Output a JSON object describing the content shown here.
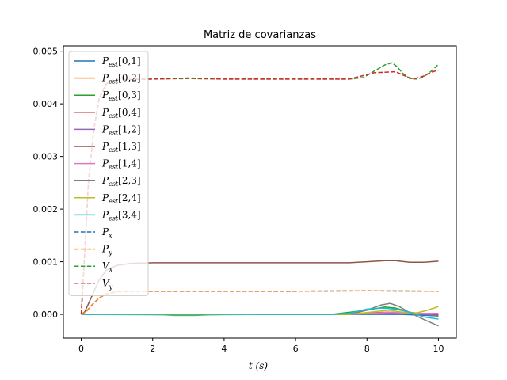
{
  "chart_data": {
    "type": "line",
    "title": "Matriz de covarianzas",
    "xlabel": "t (s)",
    "ylabel": "",
    "xlim": [
      -0.5,
      10.5
    ],
    "ylim": [
      -0.00045,
      0.0051
    ],
    "xticks": [
      0,
      2,
      4,
      6,
      8,
      10
    ],
    "xtick_labels": [
      "0",
      "2",
      "4",
      "6",
      "8",
      "10"
    ],
    "yticks": [
      0,
      0.001,
      0.002,
      0.003,
      0.004,
      0.005
    ],
    "ytick_labels": [
      "0.000",
      "0.001",
      "0.002",
      "0.003",
      "0.004",
      "0.005"
    ],
    "grid": false,
    "legend_position": "upper-left",
    "series": [
      {
        "name": "P_est[0,1]",
        "label_main": "P",
        "label_sub": "est",
        "label_suffix": "[0,1]",
        "color": "#1f77b4",
        "dash": "solid",
        "points": [
          [
            0,
            0
          ],
          [
            1,
            0
          ],
          [
            3,
            0
          ],
          [
            5,
            0
          ],
          [
            7,
            0
          ],
          [
            8,
            0
          ],
          [
            9,
            0
          ],
          [
            10,
            -3e-05
          ]
        ]
      },
      {
        "name": "P_est[0,2]",
        "label_main": "P",
        "label_sub": "est",
        "label_suffix": "[0,2]",
        "color": "#ff7f0e",
        "dash": "solid",
        "points": [
          [
            0,
            0
          ],
          [
            2,
            0
          ],
          [
            5,
            0
          ],
          [
            7.5,
            0
          ],
          [
            8,
            3e-05
          ],
          [
            8.6,
            4e-05
          ],
          [
            9,
            2e-05
          ],
          [
            10,
            1e-05
          ]
        ]
      },
      {
        "name": "P_est[0,3]",
        "label_main": "P",
        "label_sub": "est",
        "label_suffix": "[0,3]",
        "color": "#2ca02c",
        "dash": "solid",
        "points": [
          [
            0,
            0
          ],
          [
            2,
            0
          ],
          [
            2.6,
            -2e-05
          ],
          [
            3.2,
            -2e-05
          ],
          [
            4,
            0
          ],
          [
            7,
            0
          ],
          [
            8,
            8e-05
          ],
          [
            8.5,
            0.00014
          ],
          [
            8.8,
            0.00012
          ],
          [
            9.2,
            4e-05
          ],
          [
            10,
            -3e-05
          ]
        ]
      },
      {
        "name": "P_est[0,4]",
        "label_main": "P",
        "label_sub": "est",
        "label_suffix": "[0,4]",
        "color": "#d62728",
        "dash": "solid",
        "points": [
          [
            0,
            0
          ],
          [
            7.5,
            0
          ],
          [
            8.2,
            3e-05
          ],
          [
            8.6,
            4e-05
          ],
          [
            9,
            2e-05
          ],
          [
            10,
            -1e-05
          ]
        ]
      },
      {
        "name": "P_est[1,2]",
        "label_main": "P",
        "label_sub": "est",
        "label_suffix": "[1,2]",
        "color": "#9467bd",
        "dash": "solid",
        "points": [
          [
            0,
            0
          ],
          [
            7.5,
            0
          ],
          [
            8.3,
            2e-05
          ],
          [
            8.8,
            3e-05
          ],
          [
            9.3,
            1e-05
          ],
          [
            10,
            -2e-05
          ]
        ]
      },
      {
        "name": "P_est[1,3]",
        "label_main": "P",
        "label_sub": "est",
        "label_suffix": "[1,3]",
        "color": "#8c564b",
        "dash": "solid",
        "points": [
          [
            0,
            0
          ],
          [
            0.1,
            5e-05
          ],
          [
            0.3,
            0.00035
          ],
          [
            0.5,
            0.00065
          ],
          [
            0.7,
            0.00084
          ],
          [
            1,
            0.00093
          ],
          [
            1.4,
            0.00097
          ],
          [
            2,
            0.00098
          ],
          [
            4,
            0.00098
          ],
          [
            6,
            0.00098
          ],
          [
            7.5,
            0.00098
          ],
          [
            8,
            0.001
          ],
          [
            8.5,
            0.00102
          ],
          [
            8.8,
            0.00102
          ],
          [
            9.2,
            0.00099
          ],
          [
            9.6,
            0.00099
          ],
          [
            10,
            0.00101
          ]
        ]
      },
      {
        "name": "P_est[1,4]",
        "label_main": "P",
        "label_sub": "est",
        "label_suffix": "[1,4]",
        "color": "#e377c2",
        "dash": "solid",
        "points": [
          [
            0,
            0
          ],
          [
            7.5,
            0
          ],
          [
            8.3,
            3e-05
          ],
          [
            8.7,
            4e-05
          ],
          [
            9.2,
            2e-05
          ],
          [
            10,
            2e-05
          ]
        ]
      },
      {
        "name": "P_est[2,3]",
        "label_main": "P",
        "label_sub": "est",
        "label_suffix": "[2,3]",
        "color": "#7f7f7f",
        "dash": "solid",
        "points": [
          [
            0,
            0
          ],
          [
            7.5,
            0
          ],
          [
            8,
            8e-05
          ],
          [
            8.4,
            0.00018
          ],
          [
            8.65,
            0.00021
          ],
          [
            8.9,
            0.00015
          ],
          [
            9.2,
            3e-05
          ],
          [
            9.6,
            -0.0001
          ],
          [
            10,
            -0.00022
          ]
        ]
      },
      {
        "name": "P_est[2,4]",
        "label_main": "P",
        "label_sub": "est",
        "label_suffix": "[2,4]",
        "color": "#bcbd22",
        "dash": "solid",
        "points": [
          [
            0,
            0
          ],
          [
            2.5,
            -1e-05
          ],
          [
            3.5,
            -1e-05
          ],
          [
            5,
            0
          ],
          [
            7.5,
            0
          ],
          [
            8.2,
            5e-05
          ],
          [
            8.6,
            8e-05
          ],
          [
            9,
            4e-05
          ],
          [
            9.4,
            3e-05
          ],
          [
            9.7,
            8e-05
          ],
          [
            10,
            0.00015
          ]
        ]
      },
      {
        "name": "P_est[3,4]",
        "label_main": "P",
        "label_sub": "est",
        "label_suffix": "[3,4]",
        "color": "#17becf",
        "dash": "solid",
        "points": [
          [
            0,
            0
          ],
          [
            7,
            0
          ],
          [
            7.5,
            2e-05
          ],
          [
            8,
            0.0001
          ],
          [
            8.4,
            0.00012
          ],
          [
            8.8,
            0.0001
          ],
          [
            9.2,
            4e-05
          ],
          [
            9.6,
            -5e-05
          ],
          [
            10,
            -9e-05
          ]
        ]
      },
      {
        "name": "P_x",
        "label_main": "P",
        "label_sub": "x",
        "label_suffix": "",
        "color": "#1f77b4",
        "dash": "dashed",
        "points": [
          [
            0,
            0
          ],
          [
            0.15,
            6e-05
          ],
          [
            0.3,
            0.00018
          ],
          [
            0.5,
            0.00031
          ],
          [
            0.7,
            0.00039
          ],
          [
            1,
            0.00043
          ],
          [
            1.5,
            0.00044
          ],
          [
            3,
            0.00044
          ],
          [
            6,
            0.00044
          ],
          [
            8,
            0.00045
          ],
          [
            10,
            0.00044
          ]
        ]
      },
      {
        "name": "P_y",
        "label_main": "P",
        "label_sub": "y",
        "label_suffix": "",
        "color": "#ff7f0e",
        "dash": "dashed",
        "points": [
          [
            0,
            0
          ],
          [
            0.15,
            6e-05
          ],
          [
            0.3,
            0.00018
          ],
          [
            0.5,
            0.00031
          ],
          [
            0.7,
            0.00039
          ],
          [
            1,
            0.00043
          ],
          [
            1.5,
            0.00044
          ],
          [
            3,
            0.00044
          ],
          [
            6,
            0.00044
          ],
          [
            8,
            0.00045
          ],
          [
            10,
            0.00044
          ]
        ]
      },
      {
        "name": "V_x",
        "label_main": "V",
        "label_sub": "x",
        "label_suffix": "",
        "color": "#2ca02c",
        "dash": "dashed",
        "points": [
          [
            0,
            0
          ],
          [
            0.1,
            0.0012
          ],
          [
            0.2,
            0.0025
          ],
          [
            0.35,
            0.0035
          ],
          [
            0.5,
            0.0041
          ],
          [
            0.7,
            0.00438
          ],
          [
            1,
            0.00446
          ],
          [
            2,
            0.00447
          ],
          [
            3,
            0.00448
          ],
          [
            4,
            0.00447
          ],
          [
            7.5,
            0.00447
          ],
          [
            7.9,
            0.0045
          ],
          [
            8.2,
            0.00462
          ],
          [
            8.5,
            0.00474
          ],
          [
            8.7,
            0.00478
          ],
          [
            8.85,
            0.0047
          ],
          [
            9,
            0.00458
          ],
          [
            9.2,
            0.00448
          ],
          [
            9.4,
            0.00447
          ],
          [
            9.6,
            0.00452
          ],
          [
            9.8,
            0.00462
          ],
          [
            10,
            0.00475
          ]
        ]
      },
      {
        "name": "V_y",
        "label_main": "V",
        "label_sub": "y",
        "label_suffix": "",
        "color": "#d62728",
        "dash": "dashed",
        "points": [
          [
            0,
            0
          ],
          [
            0.1,
            0.0012
          ],
          [
            0.2,
            0.0025
          ],
          [
            0.35,
            0.0035
          ],
          [
            0.5,
            0.0041
          ],
          [
            0.7,
            0.00438
          ],
          [
            1,
            0.00446
          ],
          [
            2,
            0.00447
          ],
          [
            3,
            0.00449
          ],
          [
            4,
            0.00447
          ],
          [
            7.5,
            0.00447
          ],
          [
            7.8,
            0.00452
          ],
          [
            8.2,
            0.00459
          ],
          [
            8.8,
            0.00461
          ],
          [
            9.1,
            0.00452
          ],
          [
            9.3,
            0.00447
          ],
          [
            9.6,
            0.00453
          ],
          [
            9.8,
            0.0046
          ],
          [
            10,
            0.00464
          ]
        ]
      }
    ]
  }
}
